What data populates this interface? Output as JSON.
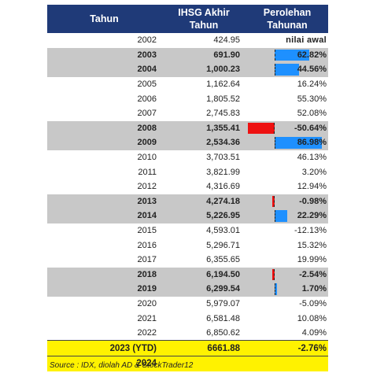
{
  "header": {
    "col_year": "Tahun",
    "col_ihsg_1": "IHSG Akhir",
    "col_ihsg_2": "Tahun",
    "col_gain_1": "Perolehan",
    "col_gain_2": "Tahunan"
  },
  "rows": [
    {
      "year": "2002",
      "value": "424.95",
      "gain": "nilai awal",
      "highlight": false,
      "gain_num": null
    },
    {
      "year": "2003",
      "value": "691.90",
      "gain": "62.82%",
      "highlight": true,
      "gain_num": 62.82
    },
    {
      "year": "2004",
      "value": "1,000.23",
      "gain": "44.56%",
      "highlight": true,
      "gain_num": 44.56
    },
    {
      "year": "2005",
      "value": "1,162.64",
      "gain": "16.24%",
      "highlight": false,
      "gain_num": null
    },
    {
      "year": "2006",
      "value": "1,805.52",
      "gain": "55.30%",
      "highlight": false,
      "gain_num": null
    },
    {
      "year": "2007",
      "value": "2,745.83",
      "gain": "52.08%",
      "highlight": false,
      "gain_num": null
    },
    {
      "year": "2008",
      "value": "1,355.41",
      "gain": "-50.64%",
      "highlight": true,
      "gain_num": -50.64
    },
    {
      "year": "2009",
      "value": "2,534.36",
      "gain": "86.98%",
      "highlight": true,
      "gain_num": 86.98
    },
    {
      "year": "2010",
      "value": "3,703.51",
      "gain": "46.13%",
      "highlight": false,
      "gain_num": null
    },
    {
      "year": "2011",
      "value": "3,821.99",
      "gain": "3.20%",
      "highlight": false,
      "gain_num": null
    },
    {
      "year": "2012",
      "value": "4,316.69",
      "gain": "12.94%",
      "highlight": false,
      "gain_num": null
    },
    {
      "year": "2013",
      "value": "4,274.18",
      "gain": "-0.98%",
      "highlight": true,
      "gain_num": -0.98
    },
    {
      "year": "2014",
      "value": "5,226.95",
      "gain": "22.29%",
      "highlight": true,
      "gain_num": 22.29
    },
    {
      "year": "2015",
      "value": "4,593.01",
      "gain": "-12.13%",
      "highlight": false,
      "gain_num": null
    },
    {
      "year": "2016",
      "value": "5,296.71",
      "gain": "15.32%",
      "highlight": false,
      "gain_num": null
    },
    {
      "year": "2017",
      "value": "6,355.65",
      "gain": "19.99%",
      "highlight": false,
      "gain_num": null
    },
    {
      "year": "2018",
      "value": "6,194.50",
      "gain": "-2.54%",
      "highlight": true,
      "gain_num": -2.54
    },
    {
      "year": "2019",
      "value": "6,299.54",
      "gain": "1.70%",
      "highlight": true,
      "gain_num": 1.7
    },
    {
      "year": "2020",
      "value": "5,979.07",
      "gain": "-5.09%",
      "highlight": false,
      "gain_num": null
    },
    {
      "year": "2021",
      "value": "6,581.48",
      "gain": "10.08%",
      "highlight": false,
      "gain_num": null
    },
    {
      "year": "2022",
      "value": "6,850.62",
      "gain": "4.09%",
      "highlight": false,
      "gain_num": null
    }
  ],
  "ytd_row": {
    "year": "2023 (YTD)",
    "value": "6661.88",
    "gain": "-2.76%"
  },
  "next_row": {
    "year": "2024",
    "value": "",
    "gain": ""
  },
  "source": "Source : IDX, diolah AD & StockTrader12",
  "colors": {
    "header_bg": "#1f3a78",
    "highlight_bg": "#c8c8c8",
    "ytd_bg": "#fff200",
    "bar_pos": "#1e90ff",
    "bar_neg": "#ee1111"
  }
}
